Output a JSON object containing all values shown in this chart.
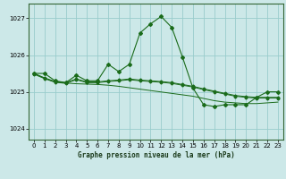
{
  "title": "Graphe pression niveau de la mer (hPa)",
  "bg_color": "#cce8e8",
  "grid_color": "#99cccc",
  "line_color": "#1a6b1a",
  "xlim": [
    -0.5,
    23.5
  ],
  "ylim": [
    1023.7,
    1027.4
  ],
  "yticks": [
    1024,
    1025,
    1026,
    1027
  ],
  "xticks": [
    0,
    1,
    2,
    3,
    4,
    5,
    6,
    7,
    8,
    9,
    10,
    11,
    12,
    13,
    14,
    15,
    16,
    17,
    18,
    19,
    20,
    21,
    22,
    23
  ],
  "series_spiky": {
    "x": [
      0,
      1,
      2,
      3,
      4,
      5,
      6,
      7,
      8,
      9,
      10,
      11,
      12,
      13,
      14,
      15,
      16,
      17,
      18,
      19,
      20,
      21,
      22,
      23
    ],
    "y": [
      1025.5,
      1025.5,
      1025.3,
      1025.25,
      1025.45,
      1025.3,
      1025.3,
      1025.75,
      1025.55,
      1025.75,
      1026.6,
      1026.85,
      1027.05,
      1026.75,
      1025.95,
      1025.1,
      1024.65,
      1024.6,
      1024.65,
      1024.65,
      1024.65,
      1024.85,
      1025.0,
      1025.0
    ]
  },
  "series_flat1": {
    "x": [
      0,
      1,
      2,
      3,
      4,
      5,
      6,
      7,
      8,
      9,
      10,
      11,
      12,
      13,
      14,
      15,
      16,
      17,
      18,
      19,
      20,
      21,
      22,
      23
    ],
    "y": [
      1025.5,
      1025.38,
      1025.28,
      1025.25,
      1025.35,
      1025.27,
      1025.27,
      1025.3,
      1025.32,
      1025.35,
      1025.32,
      1025.3,
      1025.28,
      1025.25,
      1025.2,
      1025.15,
      1025.08,
      1025.02,
      1024.96,
      1024.9,
      1024.87,
      1024.85,
      1024.85,
      1024.85
    ]
  },
  "series_flat2": {
    "x": [
      0,
      1,
      2,
      3,
      4,
      5,
      6,
      7,
      8,
      9,
      10,
      11,
      12,
      13,
      14,
      15,
      16,
      17,
      18,
      19,
      20,
      21,
      22,
      23
    ],
    "y": [
      1025.48,
      1025.36,
      1025.26,
      1025.23,
      1025.33,
      1025.25,
      1025.25,
      1025.28,
      1025.3,
      1025.33,
      1025.3,
      1025.28,
      1025.26,
      1025.23,
      1025.18,
      1025.13,
      1025.06,
      1025.0,
      1024.94,
      1024.88,
      1024.85,
      1024.83,
      1024.83,
      1024.83
    ]
  },
  "series_flat3": {
    "x": [
      0,
      1,
      2,
      3,
      4,
      5,
      6,
      7,
      8,
      15,
      16,
      17,
      18,
      19,
      20,
      21,
      22,
      23
    ],
    "y": [
      1025.5,
      1025.37,
      1025.27,
      1025.24,
      1025.22,
      1025.21,
      1025.2,
      1025.18,
      1025.15,
      1024.88,
      1024.82,
      1024.76,
      1024.72,
      1024.7,
      1024.68,
      1024.68,
      1024.7,
      1024.72
    ]
  }
}
